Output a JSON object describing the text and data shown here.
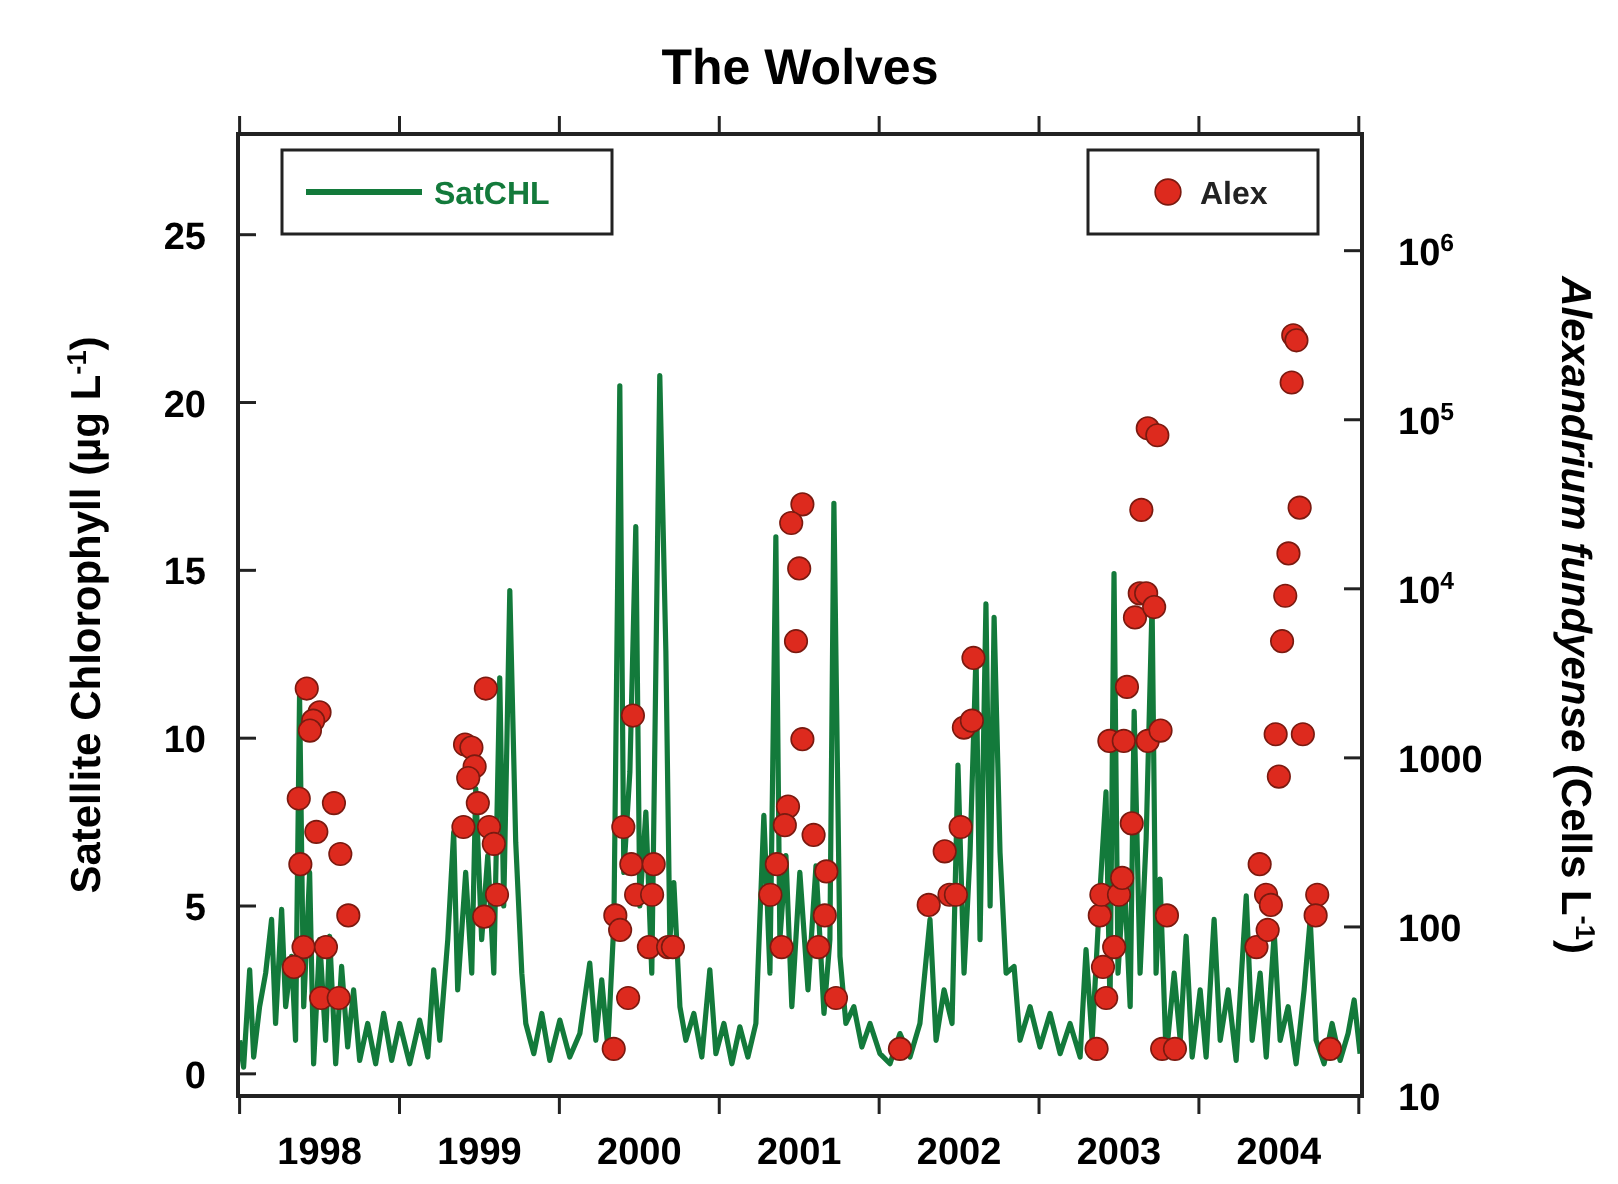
{
  "chart_data": {
    "type": "line",
    "title": "The Wolves",
    "ylabel": "Satellite Chlorophyll (µg L$^{-1}$)",
    "y2label": "Alexandrium fundyense (Cells L$^{-1}$)",
    "xlim": [
      1997.99,
      2005.02
    ],
    "xticks": [
      {
        "value": 1998,
        "label": null
      },
      {
        "value": 1999,
        "label": null
      },
      {
        "value": 2000,
        "label": null
      },
      {
        "value": 2001,
        "label": null
      },
      {
        "value": 2002,
        "label": null
      },
      {
        "value": 2003,
        "label": null
      },
      {
        "value": 2004,
        "label": null
      },
      {
        "value": 2005,
        "label": null
      },
      {
        "value": 1998.5,
        "label": "1998"
      },
      {
        "value": 1999.5,
        "label": "1999"
      },
      {
        "value": 2000.5,
        "label": "2000"
      },
      {
        "value": 2001.5,
        "label": "2001"
      },
      {
        "value": 2002.5,
        "label": "2002"
      },
      {
        "value": 2003.5,
        "label": "2003"
      },
      {
        "value": 2004.5,
        "label": "2004"
      }
    ],
    "ylim": [
      -0.66,
      28
    ],
    "yticks": [
      0,
      5,
      10,
      15,
      20,
      25
    ],
    "y2lim": [
      10,
      4900000
    ],
    "y2ticks": [
      10,
      100,
      1000,
      {
        "value": 10000,
        "label": "10$^{4}$"
      },
      {
        "value": 100000,
        "label": "10$^{5}$"
      },
      {
        "value": 1000000,
        "label": "10$^{6}$"
      }
    ],
    "log": "y2",
    "grid": false,
    "legend": "top",
    "series": [
      {
        "name": "SatCHL",
        "color": "#137a3b",
        "x": [
          1998.0,
          1998.025,
          1998.063,
          1998.088,
          1998.125,
          1998.163,
          1998.2,
          1998.225,
          1998.263,
          1998.288,
          1998.325,
          1998.35,
          1998.375,
          1998.401,
          1998.438,
          1998.463,
          1998.501,
          1998.538,
          1998.563,
          1998.601,
          1998.638,
          1998.676,
          1998.713,
          1998.751,
          1998.801,
          1998.851,
          1998.901,
          1998.951,
          1999.001,
          1999.064,
          1999.126,
          1999.177,
          1999.214,
          1999.252,
          1999.302,
          1999.339,
          1999.364,
          1999.414,
          1999.452,
          1999.477,
          1999.514,
          1999.552,
          1999.59,
          1999.627,
          1999.652,
          1999.69,
          1999.727,
          1999.765,
          1999.79,
          1999.84,
          1999.89,
          1999.94,
          2000.003,
          2000.065,
          2000.128,
          2000.19,
          2000.228,
          2000.265,
          2000.303,
          2000.341,
          2000.378,
          2000.403,
          2000.441,
          2000.478,
          2000.503,
          2000.541,
          2000.578,
          2000.628,
          2000.666,
          2000.691,
          2000.716,
          2000.754,
          2000.791,
          2000.841,
          2000.891,
          2000.941,
          2000.979,
          2001.029,
          2001.079,
          2001.129,
          2001.179,
          2001.229,
          2001.279,
          2001.317,
          2001.354,
          2001.379,
          2001.417,
          2001.454,
          2001.504,
          2001.555,
          2001.605,
          2001.655,
          2001.692,
          2001.717,
          2001.755,
          2001.792,
          2001.842,
          2001.892,
          2001.943,
          2002.005,
          2002.068,
          2002.13,
          2002.193,
          2002.255,
          2002.318,
          2002.356,
          2002.406,
          2002.456,
          2002.493,
          2002.531,
          2002.568,
          2002.606,
          2002.631,
          2002.668,
          2002.694,
          2002.719,
          2002.756,
          2002.794,
          2002.844,
          2002.881,
          2002.944,
          2003.006,
          2003.069,
          2003.132,
          2003.194,
          2003.257,
          2003.294,
          2003.332,
          2003.382,
          2003.419,
          2003.444,
          2003.469,
          2003.494,
          2003.532,
          2003.57,
          2003.595,
          2003.632,
          2003.67,
          2003.707,
          2003.732,
          2003.757,
          2003.795,
          2003.845,
          2003.883,
          2003.92,
          2003.958,
          2004.008,
          2004.045,
          2004.095,
          2004.133,
          2004.183,
          2004.233,
          2004.296,
          2004.333,
          2004.383,
          2004.421,
          2004.471,
          2004.508,
          2004.558,
          2004.608,
          2004.658,
          2004.696,
          2004.733,
          2004.783,
          2004.833,
          2004.883,
          2004.933,
          2004.971,
          2005.008
        ],
        "values": [
          1.0,
          0.2,
          3.1,
          0.5,
          2.0,
          3.0,
          4.6,
          1.5,
          4.9,
          2.0,
          3.5,
          1.0,
          11.3,
          2.0,
          6.0,
          0.3,
          4.0,
          1.0,
          4.1,
          0.3,
          3.2,
          0.8,
          2.5,
          0.4,
          1.5,
          0.3,
          1.8,
          0.4,
          1.5,
          0.3,
          1.6,
          0.5,
          3.1,
          1.0,
          4.0,
          7.2,
          2.5,
          6.0,
          3.0,
          8.5,
          4.0,
          6.5,
          3.0,
          11.8,
          5.0,
          14.4,
          6.9,
          3.0,
          1.5,
          0.6,
          1.8,
          0.4,
          1.6,
          0.5,
          1.2,
          3.3,
          1.0,
          2.8,
          0.8,
          4.5,
          20.5,
          6.0,
          9.0,
          16.3,
          5.0,
          7.8,
          3.0,
          20.8,
          12.6,
          4.0,
          5.7,
          2.0,
          1.0,
          1.8,
          0.5,
          3.1,
          0.6,
          1.5,
          0.3,
          1.4,
          0.5,
          1.5,
          7.7,
          3.0,
          16.0,
          4.0,
          6.5,
          2.0,
          6.0,
          2.5,
          6.2,
          1.8,
          4.0,
          17.0,
          3.5,
          1.5,
          2.0,
          0.8,
          1.5,
          0.6,
          0.3,
          1.2,
          0.5,
          1.5,
          4.6,
          1.0,
          2.5,
          1.5,
          9.2,
          3.0,
          6.5,
          12.5,
          4.0,
          14.0,
          5.0,
          13.6,
          6.6,
          3.0,
          3.2,
          1.0,
          2.0,
          0.8,
          1.8,
          0.6,
          1.5,
          0.5,
          3.7,
          1.0,
          5.5,
          8.4,
          2.0,
          14.9,
          3.0,
          6.0,
          2.0,
          10.8,
          3.0,
          7.0,
          14.0,
          3.0,
          5.8,
          0.5,
          3.0,
          1.0,
          4.1,
          0.5,
          2.5,
          0.5,
          4.6,
          1.0,
          2.5,
          0.4,
          5.3,
          1.0,
          3.0,
          0.5,
          4.2,
          1.0,
          2.0,
          0.3,
          2.5,
          4.6,
          1.0,
          0.3,
          1.5,
          0.4,
          1.2,
          2.2,
          0.6
        ]
      },
      {
        "name": "Alex",
        "type": "scatter",
        "axis": "y2",
        "marker": "circle",
        "color": "#dd2a1e",
        "x": [
          1998.42,
          1998.5,
          1998.46,
          1998.44,
          1998.37,
          1998.59,
          1998.48,
          1998.38,
          1998.63,
          1998.68,
          1998.4,
          1998.54,
          1998.34,
          1998.51,
          1998.62,
          1999.54,
          1999.41,
          1999.45,
          1999.47,
          1999.43,
          1999.49,
          1999.4,
          1999.56,
          1999.59,
          1999.61,
          1999.53,
          2000.46,
          2000.4,
          2000.45,
          2000.59,
          2000.48,
          2000.58,
          2000.35,
          2000.38,
          2000.56,
          2000.68,
          2000.71,
          2000.43,
          2000.34,
          2001.52,
          2001.45,
          2001.5,
          2001.48,
          2001.52,
          2001.43,
          2001.41,
          2001.36,
          2001.32,
          2001.39,
          2001.59,
          2001.67,
          2001.66,
          2001.62,
          2001.73,
          2002.13,
          2002.31,
          2002.41,
          2002.44,
          2002.48,
          2002.51,
          2002.53,
          2002.58,
          2002.59,
          2003.36,
          2003.38,
          2003.4,
          2003.42,
          2003.39,
          2003.47,
          2003.5,
          2003.52,
          2003.44,
          2003.53,
          2003.55,
          2003.58,
          2003.6,
          2003.63,
          2003.67,
          2003.72,
          2003.64,
          2003.68,
          2003.74,
          2003.68,
          2003.76,
          2003.8,
          2003.77,
          2003.85,
          2004.38,
          2004.36,
          2004.43,
          2004.42,
          2004.45,
          2004.48,
          2004.5,
          2004.52,
          2004.54,
          2004.56,
          2004.58,
          2004.59,
          2004.61,
          2004.63,
          2004.65,
          2004.74,
          2004.73,
          2004.82
        ],
        "values": [
          2570,
          1860,
          1660,
          1450,
          575,
          540,
          365,
          235,
          270,
          117,
          76,
          76,
          58,
          38,
          38,
          2570,
          1200,
          1150,
          890,
          760,
          540,
          390,
          390,
          310,
          155,
          115,
          1780,
          390,
          235,
          235,
          155,
          155,
          117,
          96,
          76,
          76,
          76,
          38,
          19,
          31600,
          24500,
          13200,
          4900,
          1290,
          515,
          400,
          235,
          155,
          76,
          350,
          213,
          117,
          76,
          38,
          19,
          135,
          280,
          155,
          155,
          390,
          1510,
          1660,
          3900,
          19,
          117,
          58,
          38,
          155,
          76,
          155,
          195,
          1260,
          1260,
          2630,
          410,
          6770,
          9400,
          9400,
          7800,
          29300,
          89000,
          81000,
          1260,
          1450,
          117,
          19,
          19,
          235,
          76,
          96,
          155,
          135,
          1380,
          775,
          4900,
          9100,
          16200,
          166000,
          316000,
          295000,
          30200,
          1380,
          155,
          117,
          19
        ]
      }
    ]
  }
}
